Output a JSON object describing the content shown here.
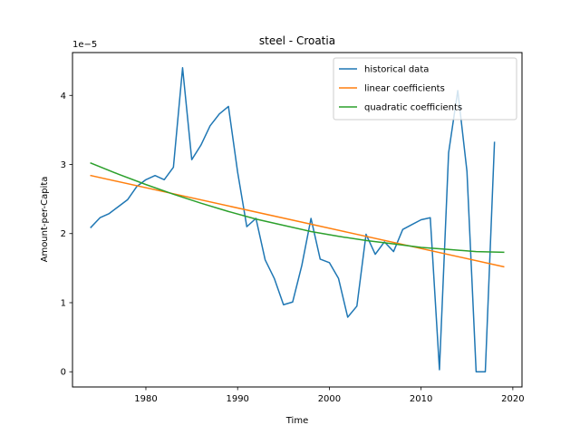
{
  "chart_data": {
    "type": "line",
    "title": "steel - Croatia",
    "xlabel": "Time",
    "ylabel": "Amount-per-Capita",
    "y_offset_label": "1e−5",
    "xlim": [
      1972,
      2021
    ],
    "ylim": [
      -0.22,
      4.62
    ],
    "x_ticks": [
      1980,
      1990,
      2000,
      2010,
      2020
    ],
    "y_ticks": [
      0,
      1,
      2,
      3,
      4
    ],
    "legend_position": "top-right",
    "series": [
      {
        "name": "historical data",
        "color": "#1f77b4",
        "x": [
          1974,
          1975,
          1976,
          1977,
          1978,
          1979,
          1980,
          1981,
          1982,
          1983,
          1984,
          1985,
          1986,
          1987,
          1988,
          1989,
          1990,
          1991,
          1992,
          1993,
          1994,
          1995,
          1996,
          1997,
          1998,
          1999,
          2000,
          2001,
          2002,
          2003,
          2004,
          2005,
          2006,
          2007,
          2008,
          2009,
          2010,
          2011,
          2012,
          2013,
          2014,
          2015,
          2016,
          2017,
          2018
        ],
        "y": [
          2.09,
          2.23,
          2.29,
          2.39,
          2.49,
          2.68,
          2.78,
          2.84,
          2.78,
          2.96,
          4.4,
          3.07,
          3.28,
          3.56,
          3.73,
          3.84,
          2.89,
          2.1,
          2.22,
          1.62,
          1.35,
          0.97,
          1.01,
          1.54,
          2.22,
          1.63,
          1.58,
          1.35,
          0.79,
          0.95,
          1.99,
          1.7,
          1.88,
          1.74,
          2.06,
          2.13,
          2.2,
          2.23,
          0.03,
          3.17,
          4.07,
          2.9,
          0.0,
          0.0,
          3.32
        ]
      },
      {
        "name": "linear coefficients",
        "color": "#ff7f0e",
        "x": [
          1974,
          2019
        ],
        "y": [
          2.84,
          1.52
        ]
      },
      {
        "name": "quadratic coefficients",
        "color": "#2ca02c",
        "x": [
          1974,
          1977,
          1980,
          1983,
          1986,
          1989,
          1992,
          1995,
          1998,
          2001,
          2004,
          2007,
          2010,
          2013,
          2016,
          2019
        ],
        "y": [
          3.02,
          2.86,
          2.71,
          2.57,
          2.44,
          2.32,
          2.21,
          2.12,
          2.03,
          1.96,
          1.9,
          1.85,
          1.8,
          1.77,
          1.74,
          1.73
        ]
      }
    ]
  }
}
